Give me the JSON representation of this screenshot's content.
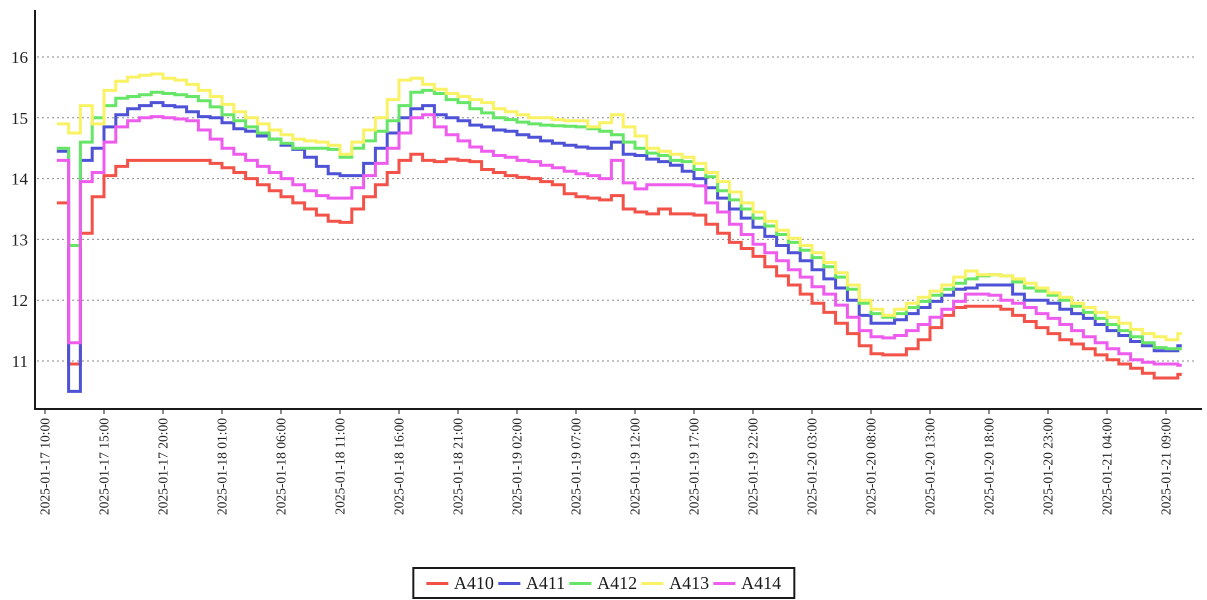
{
  "chart_data": {
    "type": "line",
    "subtype": "step-after",
    "title": "",
    "xlabel": "",
    "ylabel": "",
    "grid": "horizontal-dotted",
    "legend_position": "bottom-center",
    "axis_color": "#1a1a1a",
    "grid_color": "#8a8a8a",
    "tick_label_color": "#222222",
    "ylim": [
      10.2,
      16.8
    ],
    "y_ticks": [
      11,
      12,
      13,
      14,
      15,
      16
    ],
    "x_start": "2025-01-17 11:00",
    "x_step_hours": 1,
    "x_tick_interval_hours": 5,
    "x_tick_labels": [
      "2025-01-17 10:00",
      "2025-01-17 15:00",
      "2025-01-17 20:00",
      "2025-01-18 01:00",
      "2025-01-18 06:00",
      "2025-01-18 11:00",
      "2025-01-18 16:00",
      "2025-01-18 21:00",
      "2025-01-19 02:00",
      "2025-01-19 07:00",
      "2025-01-19 12:00",
      "2025-01-19 17:00",
      "2025-01-19 22:00",
      "2025-01-20 03:00",
      "2025-01-20 08:00",
      "2025-01-20 13:00",
      "2025-01-20 18:00",
      "2025-01-20 23:00",
      "2025-01-21 04:00",
      "2025-01-21 09:00"
    ],
    "series": [
      {
        "name": "A410",
        "color": "#f25248",
        "values": [
          13.6,
          10.95,
          13.1,
          13.7,
          14.05,
          14.2,
          14.3,
          14.3,
          14.3,
          14.3,
          14.3,
          14.3,
          14.3,
          14.25,
          14.18,
          14.1,
          14.0,
          13.9,
          13.8,
          13.7,
          13.6,
          13.5,
          13.4,
          13.3,
          13.28,
          13.5,
          13.7,
          13.9,
          14.1,
          14.3,
          14.4,
          14.3,
          14.28,
          14.32,
          14.3,
          14.28,
          14.15,
          14.1,
          14.05,
          14.02,
          14.0,
          13.95,
          13.9,
          13.75,
          13.7,
          13.68,
          13.65,
          13.72,
          13.5,
          13.45,
          13.42,
          13.5,
          13.42,
          13.42,
          13.4,
          13.25,
          13.1,
          12.95,
          12.85,
          12.72,
          12.55,
          12.4,
          12.25,
          12.1,
          11.95,
          11.8,
          11.62,
          11.45,
          11.25,
          11.12,
          11.1,
          11.1,
          11.2,
          11.35,
          11.55,
          11.75,
          11.88,
          11.9,
          11.9,
          11.9,
          11.85,
          11.75,
          11.65,
          11.55,
          11.45,
          11.35,
          11.28,
          11.2,
          11.1,
          11.02,
          10.95,
          10.88,
          10.8,
          10.72,
          10.72,
          10.78
        ]
      },
      {
        "name": "A411",
        "color": "#4d52d6",
        "values": [
          14.45,
          10.5,
          14.3,
          14.5,
          14.85,
          15.05,
          15.15,
          15.2,
          15.25,
          15.2,
          15.18,
          15.1,
          15.02,
          15.0,
          14.92,
          14.82,
          14.78,
          14.7,
          14.65,
          14.55,
          14.48,
          14.35,
          14.2,
          14.08,
          14.05,
          14.05,
          14.25,
          14.5,
          14.75,
          15.0,
          15.15,
          15.2,
          15.05,
          15.0,
          14.95,
          14.88,
          14.85,
          14.8,
          14.78,
          14.72,
          14.68,
          14.62,
          14.58,
          14.55,
          14.52,
          14.5,
          14.5,
          14.6,
          14.4,
          14.38,
          14.32,
          14.28,
          14.22,
          14.12,
          14.0,
          13.85,
          13.68,
          13.5,
          13.35,
          13.2,
          13.05,
          12.9,
          12.78,
          12.65,
          12.5,
          12.35,
          12.2,
          12.0,
          11.75,
          11.62,
          11.62,
          11.68,
          11.78,
          11.88,
          11.98,
          12.08,
          12.18,
          12.2,
          12.25,
          12.25,
          12.25,
          12.1,
          12.0,
          12.0,
          11.95,
          11.85,
          11.78,
          11.7,
          11.6,
          11.5,
          11.42,
          11.32,
          11.25,
          11.17,
          11.17,
          11.25
        ]
      },
      {
        "name": "A412",
        "color": "#66e566",
        "values": [
          14.5,
          12.9,
          14.6,
          15.0,
          15.2,
          15.32,
          15.35,
          15.38,
          15.42,
          15.4,
          15.38,
          15.35,
          15.28,
          15.18,
          15.05,
          14.95,
          14.85,
          14.75,
          14.65,
          14.58,
          14.5,
          14.5,
          14.5,
          14.48,
          14.35,
          14.5,
          14.62,
          14.78,
          14.95,
          15.2,
          15.42,
          15.45,
          15.4,
          15.3,
          15.25,
          15.15,
          15.08,
          15.0,
          14.97,
          14.93,
          14.9,
          14.88,
          14.87,
          14.86,
          14.85,
          14.82,
          14.78,
          14.72,
          14.6,
          14.5,
          14.42,
          14.38,
          14.3,
          14.28,
          14.15,
          14.03,
          13.8,
          13.65,
          13.5,
          13.35,
          13.22,
          13.08,
          12.95,
          12.82,
          12.7,
          12.55,
          12.38,
          12.18,
          11.95,
          11.78,
          11.72,
          11.78,
          11.88,
          11.98,
          12.08,
          12.18,
          12.28,
          12.35,
          12.4,
          12.42,
          12.4,
          12.3,
          12.2,
          12.15,
          12.08,
          12.0,
          11.9,
          11.8,
          11.7,
          11.6,
          11.5,
          11.4,
          11.3,
          11.22,
          11.2,
          11.2
        ]
      },
      {
        "name": "A413",
        "color": "#f9f264",
        "values": [
          14.9,
          14.75,
          15.2,
          14.9,
          15.45,
          15.6,
          15.67,
          15.7,
          15.72,
          15.65,
          15.62,
          15.55,
          15.45,
          15.35,
          15.22,
          15.1,
          15.0,
          14.9,
          14.8,
          14.72,
          14.65,
          14.62,
          14.6,
          14.55,
          14.4,
          14.6,
          14.8,
          15.0,
          15.3,
          15.62,
          15.65,
          15.55,
          15.47,
          15.4,
          15.35,
          15.3,
          15.25,
          15.15,
          15.1,
          15.05,
          15.0,
          15.0,
          14.97,
          14.95,
          14.95,
          14.85,
          14.92,
          15.05,
          14.85,
          14.7,
          14.5,
          14.45,
          14.4,
          14.35,
          14.25,
          14.1,
          13.95,
          13.78,
          13.6,
          13.45,
          13.3,
          13.15,
          13.02,
          12.9,
          12.78,
          12.62,
          12.45,
          12.25,
          12.0,
          11.85,
          11.75,
          11.85,
          11.95,
          12.05,
          12.15,
          12.25,
          12.38,
          12.48,
          12.42,
          12.42,
          12.4,
          12.35,
          12.28,
          12.2,
          12.12,
          12.05,
          11.95,
          11.88,
          11.8,
          11.72,
          11.62,
          11.52,
          11.45,
          11.4,
          11.35,
          11.45
        ]
      },
      {
        "name": "A414",
        "color": "#ee5cee",
        "values": [
          14.3,
          11.3,
          13.95,
          14.1,
          14.6,
          14.85,
          14.95,
          15.0,
          15.02,
          15.0,
          14.98,
          14.95,
          14.8,
          14.65,
          14.5,
          14.4,
          14.3,
          14.2,
          14.1,
          14.0,
          13.9,
          13.8,
          13.72,
          13.68,
          13.68,
          13.85,
          14.05,
          14.25,
          14.5,
          14.75,
          15.0,
          15.05,
          14.85,
          14.72,
          14.62,
          14.52,
          14.45,
          14.38,
          14.35,
          14.3,
          14.28,
          14.22,
          14.18,
          14.12,
          14.08,
          14.05,
          14.0,
          14.3,
          13.93,
          13.83,
          13.9,
          13.9,
          13.9,
          13.9,
          13.88,
          13.6,
          13.45,
          13.25,
          13.08,
          12.92,
          12.78,
          12.65,
          12.5,
          12.38,
          12.22,
          12.1,
          11.92,
          11.72,
          11.5,
          11.4,
          11.38,
          11.42,
          11.5,
          11.6,
          11.72,
          11.85,
          11.98,
          12.1,
          12.1,
          12.08,
          12.0,
          11.95,
          11.88,
          11.78,
          11.7,
          11.6,
          11.5,
          11.4,
          11.3,
          11.2,
          11.12,
          11.02,
          10.98,
          10.95,
          10.95,
          10.93
        ]
      }
    ]
  }
}
